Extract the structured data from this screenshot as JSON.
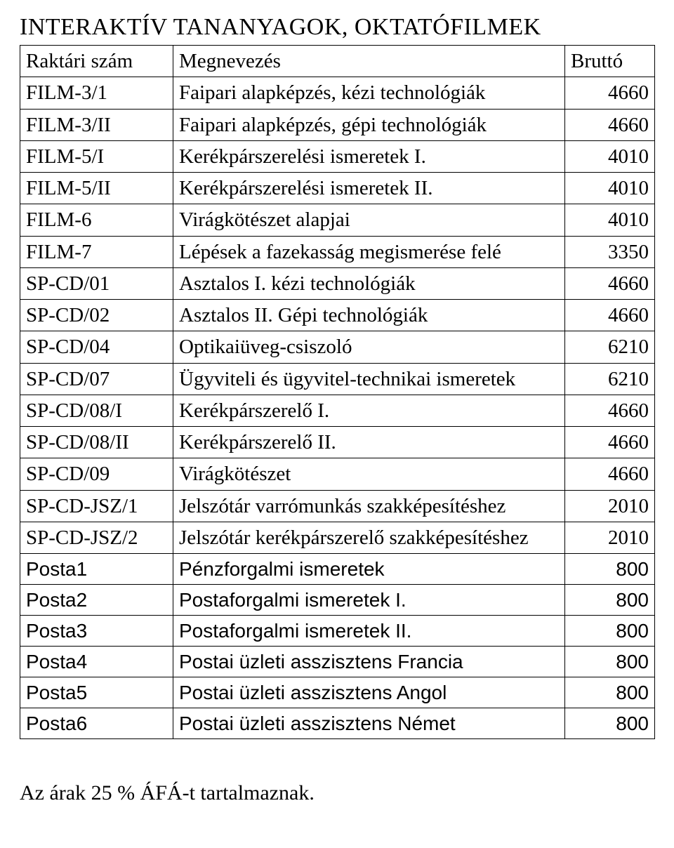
{
  "title": "INTERAKTÍV TANANYAGOK, OKTATÓFILMEK",
  "table": {
    "headers": {
      "id": "Raktári szám",
      "name": "Megnevezés",
      "price": "Bruttó"
    },
    "columns_width": {
      "id": 218,
      "name": 558,
      "price": 128
    },
    "border_color": "#000000",
    "background_color": "#ffffff",
    "text_color": "#000000",
    "font_family_serif": "Times New Roman",
    "font_family_sans": "Arial",
    "fontsize_serif": 29,
    "fontsize_sans": 28,
    "rows": [
      {
        "id": "FILM-3/1",
        "name": "Faipari alapképzés, kézi technológiák",
        "price": "4660",
        "style": "serif"
      },
      {
        "id": "FILM-3/II",
        "name": "Faipari alapképzés, gépi technológiák",
        "price": "4660",
        "style": "serif"
      },
      {
        "id": "FILM-5/I",
        "name": "Kerékpárszerelési ismeretek I.",
        "price": "4010",
        "style": "serif"
      },
      {
        "id": "FILM-5/II",
        "name": "Kerékpárszerelési ismeretek II.",
        "price": "4010",
        "style": "serif"
      },
      {
        "id": "FILM-6",
        "name": "Virágkötészet alapjai",
        "price": "4010",
        "style": "serif"
      },
      {
        "id": "FILM-7",
        "name": "Lépések a fazekasság megismerése felé",
        "price": "3350",
        "style": "serif"
      },
      {
        "id": "SP-CD/01",
        "name": "Asztalos I. kézi technológiák",
        "price": "4660",
        "style": "serif"
      },
      {
        "id": "SP-CD/02",
        "name": "Asztalos II. Gépi technológiák",
        "price": "4660",
        "style": "serif"
      },
      {
        "id": "SP-CD/04",
        "name": "Optikaiüveg-csiszoló",
        "price": "6210",
        "style": "serif"
      },
      {
        "id": "SP-CD/07",
        "name": "Ügyviteli és ügyvitel-technikai ismeretek",
        "price": "6210",
        "style": "serif"
      },
      {
        "id": "SP-CD/08/I",
        "name": "Kerékpárszerelő I.",
        "price": "4660",
        "style": "serif"
      },
      {
        "id": "SP-CD/08/II",
        "name": "Kerékpárszerelő II.",
        "price": "4660",
        "style": "serif"
      },
      {
        "id": "SP-CD/09",
        "name": "Virágkötészet",
        "price": "4660",
        "style": "serif"
      },
      {
        "id": "SP-CD-JSZ/1",
        "name": "Jelszótár varrómunkás szakképesítéshez",
        "price": "2010",
        "style": "serif"
      },
      {
        "id": "SP-CD-JSZ/2",
        "name": "Jelszótár kerékpárszerelő szakképesítéshez",
        "price": "2010",
        "style": "serif"
      },
      {
        "id": "Posta1",
        "name": "Pénzforgalmi ismeretek",
        "price": "800",
        "style": "sans"
      },
      {
        "id": "Posta2",
        "name": "Postaforgalmi ismeretek I.",
        "price": "800",
        "style": "sans"
      },
      {
        "id": "Posta3",
        "name": "Postaforgalmi ismeretek II.",
        "price": "800",
        "style": "sans"
      },
      {
        "id": "Posta4",
        "name": "Postai üzleti asszisztens Francia",
        "price": "800",
        "style": "sans"
      },
      {
        "id": "Posta5",
        "name": "Postai üzleti asszisztens Angol",
        "price": "800",
        "style": "sans"
      },
      {
        "id": "Posta6",
        "name": "Postai üzleti asszisztens Német",
        "price": "800",
        "style": "sans"
      }
    ]
  },
  "footer": "Az árak 25 % ÁFÁ-t tartalmaznak."
}
